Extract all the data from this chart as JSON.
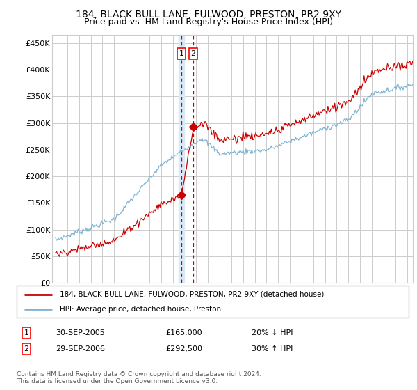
{
  "title": "184, BLACK BULL LANE, FULWOOD, PRESTON, PR2 9XY",
  "subtitle": "Price paid vs. HM Land Registry's House Price Index (HPI)",
  "ytick_labels": [
    "£0",
    "£50K",
    "£100K",
    "£150K",
    "£200K",
    "£250K",
    "£300K",
    "£350K",
    "£400K",
    "£450K"
  ],
  "yticks": [
    0,
    50000,
    100000,
    150000,
    200000,
    250000,
    300000,
    350000,
    400000,
    450000
  ],
  "xlim_start": 1994.7,
  "xlim_end": 2025.5,
  "ylim": [
    0,
    465000
  ],
  "t1_date": 2005.75,
  "t1_price": 165000,
  "t1_display": "30-SEP-2005",
  "t1_pct": "20% ↓ HPI",
  "t2_date": 2006.75,
  "t2_price": 292500,
  "t2_display": "29-SEP-2006",
  "t2_pct": "30% ↑ HPI",
  "red_color": "#cc0000",
  "blue_color": "#7fb3d3",
  "band_color": "#d6eaf8",
  "grid_color": "#cccccc",
  "legend1": "184, BLACK BULL LANE, FULWOOD, PRESTON, PR2 9XY (detached house)",
  "legend2": "HPI: Average price, detached house, Preston",
  "footer": "Contains HM Land Registry data © Crown copyright and database right 2024.\nThis data is licensed under the Open Government Licence v3.0."
}
